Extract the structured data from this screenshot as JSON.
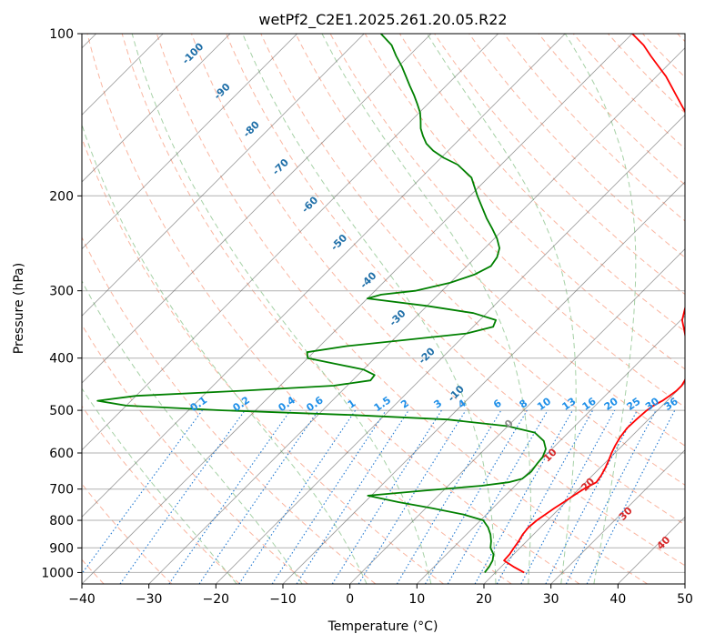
{
  "chart_data": {
    "type": "line",
    "title": "wetPf2_C2E1.2025.261.20.05.R22",
    "xlabel": "Temperature (°C)",
    "ylabel": "Pressure (hPa)",
    "xlim": [
      -40,
      50
    ],
    "ylim": [
      1050,
      100
    ],
    "y_scale": "log",
    "grid": true,
    "x_ticks": [
      -40,
      -30,
      -20,
      -10,
      0,
      10,
      20,
      30,
      40,
      50
    ],
    "x_tick_labels": [
      "−40",
      "−30",
      "−20",
      "−10",
      "0",
      "10",
      "20",
      "30",
      "40",
      "50"
    ],
    "y_ticks": [
      1000,
      900,
      800,
      700,
      600,
      500,
      400,
      300,
      200,
      100
    ],
    "y_tick_labels": [
      "1000",
      "900",
      "800",
      "700",
      "600",
      "500",
      "400",
      "300",
      "200",
      "100"
    ],
    "series": [
      {
        "role": "temperature",
        "color": "#ff0000",
        "points": [
          [
            1000,
            24.3
          ],
          [
            975,
            21.8
          ],
          [
            950,
            19.5
          ],
          [
            925,
            19.4
          ],
          [
            900,
            19.1
          ],
          [
            875,
            18.8
          ],
          [
            850,
            18.4
          ],
          [
            825,
            18.2
          ],
          [
            800,
            18.4
          ],
          [
            780,
            18.8
          ],
          [
            760,
            19.2
          ],
          [
            740,
            19.7
          ],
          [
            720,
            20.2
          ],
          [
            700,
            20.7
          ],
          [
            680,
            21.6
          ],
          [
            660,
            21.3
          ],
          [
            640,
            20.8
          ],
          [
            620,
            20.2
          ],
          [
            600,
            19.5
          ],
          [
            580,
            18.9
          ],
          [
            560,
            18.4
          ],
          [
            540,
            18.1
          ],
          [
            520,
            18.2
          ],
          [
            500,
            18.4
          ],
          [
            490,
            18.7
          ],
          [
            480,
            19.3
          ],
          [
            470,
            19.6
          ],
          [
            460,
            19.9
          ],
          [
            450,
            19.9
          ],
          [
            440,
            19.6
          ],
          [
            420,
            18.6
          ],
          [
            400,
            16.9
          ],
          [
            380,
            14.8
          ],
          [
            360,
            12.6
          ],
          [
            340,
            10.2
          ],
          [
            320,
            8.6
          ],
          [
            300,
            7.1
          ],
          [
            280,
            4.2
          ],
          [
            260,
            1.9
          ],
          [
            240,
            -0.7
          ],
          [
            220,
            -3.5
          ],
          [
            200,
            -6.4
          ],
          [
            180,
            -9.3
          ],
          [
            170,
            -11.3
          ],
          [
            160,
            -13.6
          ],
          [
            150,
            -16.8
          ],
          [
            140,
            -20.3
          ],
          [
            130,
            -24.3
          ],
          [
            125,
            -26.4
          ],
          [
            120,
            -28.6
          ],
          [
            115,
            -31.2
          ],
          [
            110,
            -33.9
          ],
          [
            105,
            -36.6
          ],
          [
            100,
            -40.0
          ]
        ]
      },
      {
        "role": "dewpoint",
        "color": "#008000",
        "points": [
          [
            1000,
            18.4
          ],
          [
            975,
            18.2
          ],
          [
            950,
            17.8
          ],
          [
            925,
            17.0
          ],
          [
            900,
            15.6
          ],
          [
            875,
            14.7
          ],
          [
            850,
            13.6
          ],
          [
            825,
            12.2
          ],
          [
            800,
            10.4
          ],
          [
            780,
            6.5
          ],
          [
            760,
            1.0
          ],
          [
            740,
            -5.0
          ],
          [
            720,
            -10.5
          ],
          [
            705,
            -3.0
          ],
          [
            690,
            5.0
          ],
          [
            680,
            8.5
          ],
          [
            670,
            10.0
          ],
          [
            650,
            10.3
          ],
          [
            630,
            10.0
          ],
          [
            610,
            9.8
          ],
          [
            590,
            9.1
          ],
          [
            570,
            7.6
          ],
          [
            550,
            5.0
          ],
          [
            535,
            0.0
          ],
          [
            520,
            -10.0
          ],
          [
            510,
            -25.0
          ],
          [
            500,
            -45.0
          ],
          [
            490,
            -60.0
          ],
          [
            480,
            -65.0
          ],
          [
            470,
            -60.0
          ],
          [
            460,
            -45.0
          ],
          [
            450,
            -32.0
          ],
          [
            440,
            -27.3
          ],
          [
            430,
            -27.5
          ],
          [
            420,
            -30.0
          ],
          [
            410,
            -35.0
          ],
          [
            400,
            -40.0
          ],
          [
            390,
            -41.0
          ],
          [
            380,
            -36.0
          ],
          [
            370,
            -28.0
          ],
          [
            360,
            -20.0
          ],
          [
            350,
            -17.0
          ],
          [
            340,
            -17.6
          ],
          [
            330,
            -22.0
          ],
          [
            320,
            -30.0
          ],
          [
            310,
            -40.0
          ],
          [
            305,
            -38.5
          ],
          [
            300,
            -34.0
          ],
          [
            290,
            -30.0
          ],
          [
            280,
            -27.6
          ],
          [
            270,
            -26.4
          ],
          [
            260,
            -26.8
          ],
          [
            250,
            -27.8
          ],
          [
            240,
            -29.6
          ],
          [
            230,
            -31.8
          ],
          [
            220,
            -34.2
          ],
          [
            200,
            -38.9
          ],
          [
            185,
            -42.5
          ],
          [
            175,
            -46.5
          ],
          [
            170,
            -49.6
          ],
          [
            165,
            -52.2
          ],
          [
            160,
            -54.3
          ],
          [
            155,
            -55.9
          ],
          [
            150,
            -57.4
          ],
          [
            145,
            -58.6
          ],
          [
            140,
            -59.9
          ],
          [
            135,
            -61.6
          ],
          [
            130,
            -63.4
          ],
          [
            125,
            -65.4
          ],
          [
            120,
            -67.4
          ],
          [
            115,
            -69.5
          ],
          [
            110,
            -71.9
          ],
          [
            105,
            -74.2
          ],
          [
            100,
            -77.5
          ]
        ]
      }
    ],
    "skew_degrees": 45,
    "dry_adiabats": [
      -40,
      -30,
      -20,
      -10,
      0,
      10,
      20,
      30,
      40,
      50,
      60,
      70,
      80,
      90,
      100,
      110,
      120,
      130,
      140,
      150,
      160,
      170,
      180,
      190,
      200
    ],
    "moist_adiabats": [
      -20,
      -10,
      0,
      10,
      20,
      25,
      30,
      35
    ],
    "mixing_ratios": [
      0.1,
      0.2,
      0.4,
      0.6,
      1,
      1.5,
      2,
      3,
      4,
      6,
      8,
      10,
      13,
      16,
      20,
      25,
      30,
      36
    ],
    "mixing_ratio_labels": [
      "0.1",
      "0.2",
      "0.4",
      "0.6",
      "1",
      "1.5",
      "2",
      "3",
      "4",
      "6",
      "8",
      "10",
      "13",
      "16",
      "20",
      "25",
      "30",
      "36"
    ],
    "isotherm_labels": [
      {
        "text": "-100",
        "value": -100
      },
      {
        "text": "-90",
        "value": -90
      },
      {
        "text": "-80",
        "value": -80
      },
      {
        "text": "-70",
        "value": -70
      },
      {
        "text": "-60",
        "value": -60
      },
      {
        "text": "-50",
        "value": -50
      },
      {
        "text": "-40",
        "value": -40
      },
      {
        "text": "-30",
        "value": -30
      },
      {
        "text": "-20",
        "value": -20
      },
      {
        "text": "-10",
        "value": -10
      },
      {
        "text": "0",
        "value": 0
      },
      {
        "text": "10",
        "value": 10
      },
      {
        "text": "20",
        "value": 20
      },
      {
        "text": "30",
        "value": 30
      },
      {
        "text": "40",
        "value": 40
      }
    ],
    "colors": {
      "temperature": "#ff0000",
      "dewpoint": "#008000",
      "dry_adiabat": "#f9a88f",
      "moist_adiabat": "#9ccc9c",
      "mixing_ratio": "#1f77d0",
      "mixing_label": "#1e8fe8",
      "isotherm": "#555555",
      "isobar_grid": "#9e9e9e",
      "cold_label": "#1f6fa8",
      "zero_label": "#888888",
      "warm_label": "#d62728"
    }
  }
}
